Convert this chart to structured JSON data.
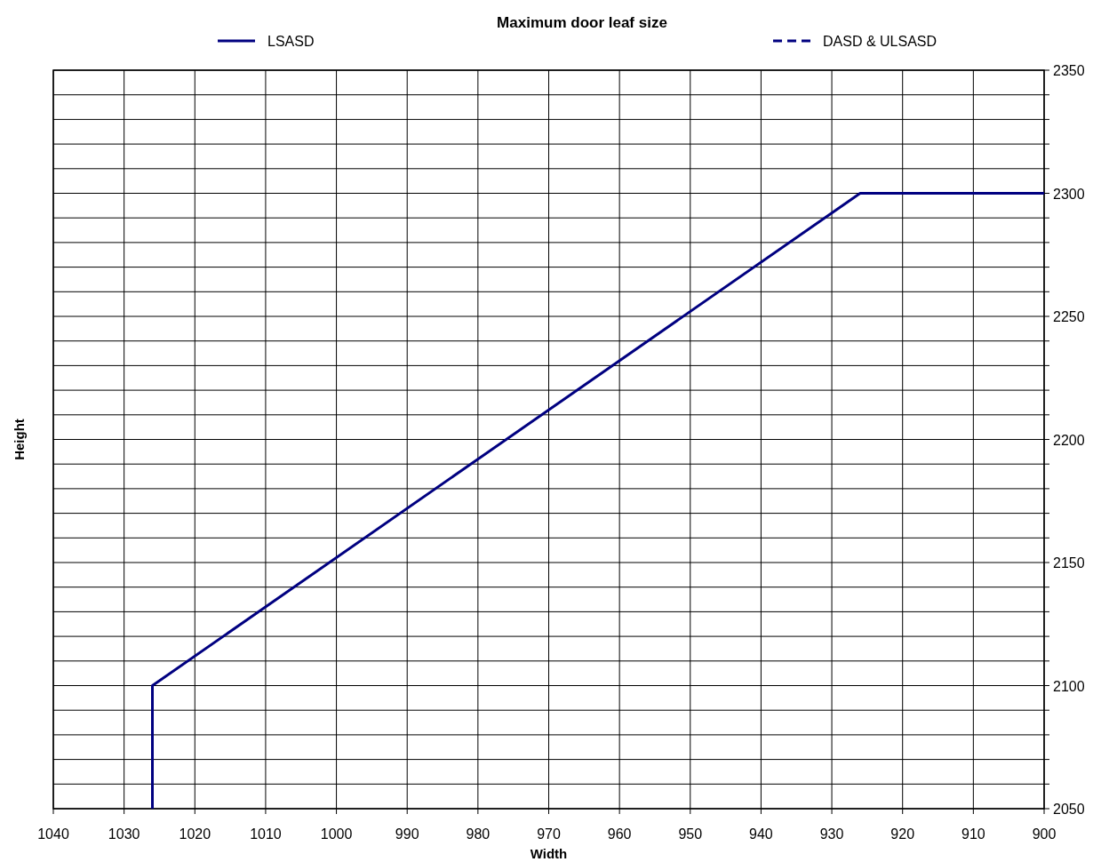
{
  "chart_data": {
    "type": "line",
    "title": "Maximum door leaf size",
    "xlabel": "Width",
    "ylabel": "Height",
    "x": [
      1026,
      1026,
      926,
      900
    ],
    "series": [
      {
        "name": "LSASD",
        "color": "#000080",
        "values": [
          2050,
          2100,
          2300,
          2300
        ],
        "line_style": "solid"
      },
      {
        "name": "DASD & ULSASD",
        "color": "#000080",
        "values": [
          null,
          null,
          null,
          null
        ],
        "line_style": "dashed"
      }
    ],
    "xlim": [
      1040,
      900
    ],
    "xticks": [
      1040,
      1030,
      1020,
      1010,
      1000,
      990,
      980,
      970,
      960,
      950,
      940,
      930,
      920,
      910,
      900
    ],
    "ylim": [
      2050,
      2350
    ],
    "yticks": [
      2050,
      {
        "value": 2060,
        "label": null
      },
      {
        "value": 2070,
        "label": null
      },
      {
        "value": 2080,
        "label": null
      },
      {
        "value": 2090,
        "label": null
      },
      2100,
      {
        "value": 2110,
        "label": null
      },
      {
        "value": 2120,
        "label": null
      },
      {
        "value": 2130,
        "label": null
      },
      {
        "value": 2140,
        "label": null
      },
      2150,
      {
        "value": 2160,
        "label": null
      },
      {
        "value": 2170,
        "label": null
      },
      {
        "value": 2180,
        "label": null
      },
      {
        "value": 2190,
        "label": null
      },
      2200,
      {
        "value": 2210,
        "label": null
      },
      {
        "value": 2220,
        "label": null
      },
      {
        "value": 2230,
        "label": null
      },
      {
        "value": 2240,
        "label": null
      },
      2250,
      {
        "value": 2260,
        "label": null
      },
      {
        "value": 2270,
        "label": null
      },
      {
        "value": 2280,
        "label": null
      },
      {
        "value": 2290,
        "label": null
      },
      2300,
      {
        "value": 2310,
        "label": null
      },
      {
        "value": 2320,
        "label": null
      },
      {
        "value": 2330,
        "label": null
      },
      {
        "value": 2340,
        "label": null
      },
      2350
    ],
    "grid": true,
    "legend": "top",
    "marker": "none"
  }
}
